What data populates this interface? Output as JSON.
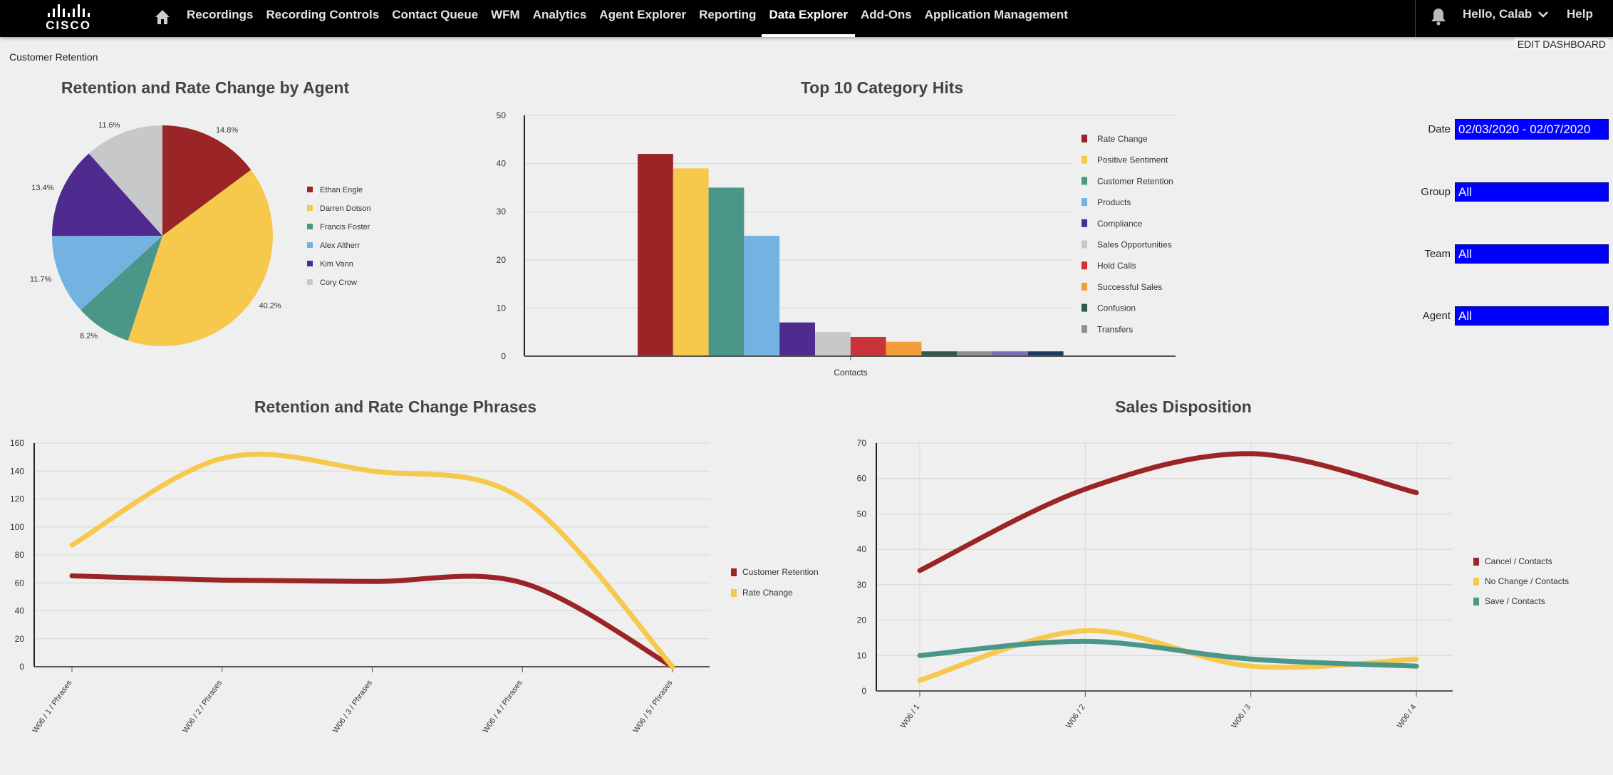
{
  "nav": {
    "logo": "CISCO",
    "items": [
      "Recordings",
      "Recording Controls",
      "Contact Queue",
      "WFM",
      "Analytics",
      "Agent Explorer",
      "Reporting",
      "Data Explorer",
      "Add-Ons",
      "Application Management"
    ],
    "active": "Data Explorer",
    "greeting": "Hello, Calab",
    "help": "Help"
  },
  "page": {
    "breadcrumb": "Customer Retention",
    "edit_dashboard": "EDIT DASHBOARD"
  },
  "filters": [
    {
      "label": "Date",
      "value": "02/03/2020 - 02/07/2020"
    },
    {
      "label": "Group",
      "value": "All"
    },
    {
      "label": "Team",
      "value": "All"
    },
    {
      "label": "Agent",
      "value": "All"
    }
  ],
  "chart_data": [
    {
      "type": "pie",
      "title": "Retention and Rate Change by Agent",
      "labels": [
        "Ethan Engle",
        "Darren Dotson",
        "Francis Foster",
        "Alex Altherr",
        "Kim Vann",
        "Cory Crow"
      ],
      "values": [
        14.8,
        40.2,
        8.2,
        11.7,
        13.4,
        11.6
      ],
      "value_labels": [
        "14.8%",
        "40.2%",
        "8.2%",
        "11.7%",
        "13.4%",
        "11.6%"
      ],
      "colors": [
        "#9b2526",
        "#f6c84c",
        "#4a9688",
        "#74b3e1",
        "#4f2b8f",
        "#c6c8ca"
      ],
      "legend": "right"
    },
    {
      "type": "bar",
      "title": "Top 10 Category Hits",
      "xlabel": "Contacts",
      "categories": [
        "Rate Change",
        "Positive Sentiment",
        "Customer Retention",
        "Products",
        "Compliance",
        "Sales Opportunities",
        "Hold Calls",
        "Successful Sales",
        "Confusion",
        "Transfers",
        "",
        ""
      ],
      "values": [
        42,
        39,
        35,
        25,
        7,
        5,
        4,
        3,
        1,
        1,
        1,
        1
      ],
      "colors": [
        "#9b2526",
        "#f6c84c",
        "#4a9688",
        "#74b3e1",
        "#4f2b8f",
        "#c6c8ca",
        "#c9343a",
        "#f29e38",
        "#2f5a43",
        "#8f8f8f",
        "#7b6bb8",
        "#1d3b5e"
      ],
      "ylim": [
        0,
        50
      ],
      "yticks": [
        0,
        10,
        20,
        30,
        40,
        50
      ],
      "legend": "right"
    },
    {
      "type": "line",
      "title": "Retention and Rate Change Phrases",
      "categories": [
        "W06 / 1 / Phrases",
        "W06 / 2 / Phrases",
        "W06 / 3 / Phrases",
        "W06 / 4 / Phrases",
        "W06 / 5 / Phrases"
      ],
      "series": [
        {
          "name": "Customer Retention",
          "values": [
            65,
            62,
            61,
            60,
            0
          ],
          "color": "#9b2526"
        },
        {
          "name": "Rate Change",
          "values": [
            87,
            149,
            140,
            120,
            0
          ],
          "color": "#f6c84c"
        }
      ],
      "ylim": [
        0,
        160
      ],
      "yticks": [
        0,
        20,
        40,
        60,
        80,
        100,
        120,
        140,
        160
      ],
      "legend": "right"
    },
    {
      "type": "line",
      "title": "Sales Disposition",
      "categories": [
        "W06 / 1",
        "W06 / 2",
        "W06 / 3",
        "W06 / 4"
      ],
      "series": [
        {
          "name": "Cancel / Contacts",
          "values": [
            34,
            57,
            67,
            56
          ],
          "color": "#9b2526"
        },
        {
          "name": "No Change / Contacts",
          "values": [
            3,
            17,
            7,
            9
          ],
          "color": "#f6c84c"
        },
        {
          "name": "Save / Contacts",
          "values": [
            10,
            14,
            9,
            7
          ],
          "color": "#4a9688"
        }
      ],
      "ylim": [
        0,
        70
      ],
      "yticks": [
        0,
        10,
        20,
        30,
        40,
        50,
        60,
        70
      ],
      "legend": "right"
    }
  ]
}
